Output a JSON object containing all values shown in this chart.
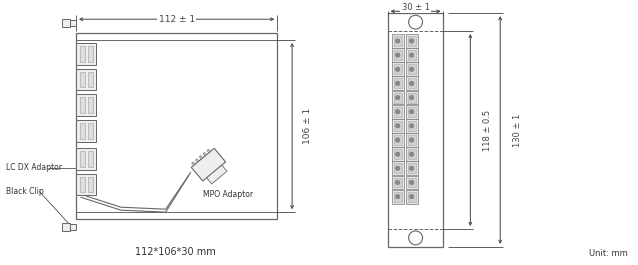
{
  "bg_color": "#ffffff",
  "line_color": "#666666",
  "dim_color": "#444444",
  "text_color": "#333333",
  "fill_gray": "#eeeeee",
  "medium_gray": "#aaaaaa",
  "dark_gray": "#777777",
  "title_text": "112*106*30 mm",
  "unit_text": "Unit: mm",
  "dim1_text": "112 ± 1",
  "dim2_text": "106 ± 1",
  "dim3_text": "30 ± 1",
  "dim4_text": "118 ± 0.5",
  "dim5_text": "130 ± 1",
  "label1": "LC DX Adaptor",
  "label2": "Black Clip",
  "label3": "MPO Adaptor"
}
